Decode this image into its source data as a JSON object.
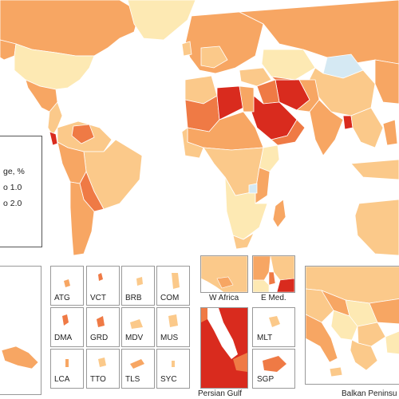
{
  "legend": {
    "title_fragment": "ge, %",
    "items": [
      "o 1.0",
      "o 2.0"
    ]
  },
  "colors": {
    "lightest": "#fde9b3",
    "light": "#fbc98a",
    "medium": "#f7a663",
    "dark": "#ef7a45",
    "darkest": "#d92b1e",
    "no_data": "#d5e9f3",
    "water": "#ffffff",
    "border": "#ffffff"
  },
  "small_states": [
    {
      "code": "ATG"
    },
    {
      "code": "VCT"
    },
    {
      "code": "BRB"
    },
    {
      "code": "COM"
    },
    {
      "code": "DMA"
    },
    {
      "code": "GRD"
    },
    {
      "code": "MDV"
    },
    {
      "code": "MUS"
    },
    {
      "code": "LCA"
    },
    {
      "code": "TTO"
    },
    {
      "code": "TLS"
    },
    {
      "code": "SYC"
    }
  ],
  "region_insets": {
    "w_africa": "W Africa",
    "e_med": "E Med.",
    "mlt": "MLT",
    "persian_gulf": "Persian Gulf",
    "sgp": "SGP",
    "balkan": "Balkan Peninsu"
  }
}
